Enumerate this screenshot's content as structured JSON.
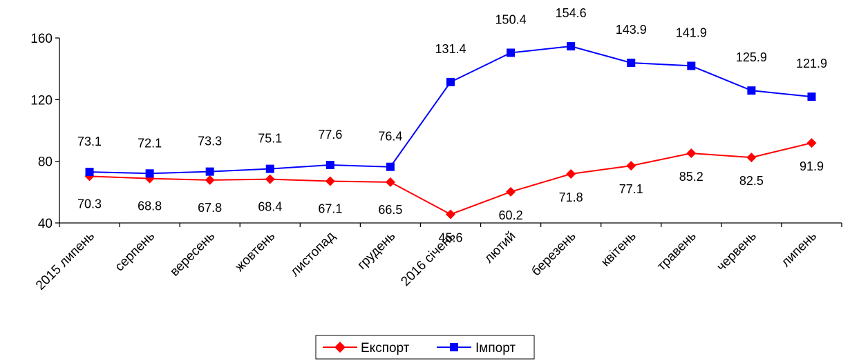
{
  "chart_data": {
    "type": "line",
    "categories": [
      "2015 липень",
      "серпень",
      "вересень",
      "жовтень",
      "листопад",
      "грудень",
      "2016 січень",
      "лютий",
      "березень",
      "квітень",
      "травень",
      "червень",
      "липень"
    ],
    "series": [
      {
        "name": "Експорт",
        "color": "#ff0000",
        "marker": "diamond",
        "values": [
          70.3,
          68.8,
          67.8,
          68.4,
          67.1,
          66.5,
          45.6,
          60.2,
          71.8,
          77.1,
          85.2,
          82.5,
          91.9
        ],
        "labels": [
          "70.3",
          "68.8",
          "67.8",
          "68.4",
          "67.1",
          "66.5",
          "45.6",
          "60.2",
          "71.8",
          "77.1",
          "85.2",
          "82.5",
          "91.9"
        ]
      },
      {
        "name": "Імпорт",
        "color": "#0000ff",
        "marker": "square",
        "values": [
          73.1,
          72.1,
          73.3,
          75.1,
          77.6,
          76.4,
          131.4,
          150.4,
          154.6,
          143.9,
          141.9,
          125.9,
          121.9
        ],
        "labels": [
          "73.1",
          "72.1",
          "73.3",
          "75.1",
          "77.6",
          "76.4",
          "131.4",
          "150.4",
          "154.6",
          "143.9",
          "141.9",
          "125.9",
          "121.9"
        ]
      }
    ],
    "ylim": [
      40,
      160
    ],
    "yticks": [
      "40",
      "80",
      "120",
      "160"
    ],
    "grid": false,
    "legend": "bottom-center"
  }
}
